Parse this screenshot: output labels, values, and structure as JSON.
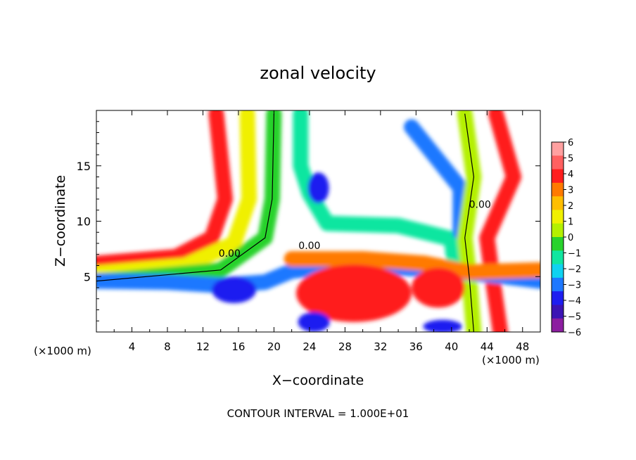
{
  "chart_data": {
    "type": "heatmap",
    "title": "zonal velocity",
    "xlabel": "X−coordinate",
    "ylabel": "Z−coordinate",
    "x_unit_left": "(×1000 m)",
    "x_unit_right": "(×1000 m)",
    "footer": "CONTOUR INTERVAL = 1.000E+01",
    "xlim": [
      0,
      50
    ],
    "ylim": [
      0,
      20
    ],
    "x_ticks": [
      4,
      8,
      12,
      16,
      20,
      24,
      28,
      32,
      36,
      40,
      44,
      48
    ],
    "x_tick_labels": [
      "4",
      "8",
      "12",
      "16",
      "20",
      "24",
      "28",
      "32",
      "36",
      "40",
      "44",
      "48"
    ],
    "y_ticks": [
      5,
      10,
      15
    ],
    "y_tick_labels": [
      "5",
      "10",
      "15"
    ],
    "contour_label_text": "0.00",
    "contour_labels": [
      {
        "x": 15.0,
        "y": 6.8
      },
      {
        "x": 24.0,
        "y": 7.5
      },
      {
        "x": 43.2,
        "y": 11.2
      }
    ],
    "colorbar": {
      "levels": [
        6,
        5,
        4,
        3,
        2,
        1,
        0,
        -1,
        -2,
        -3,
        -4,
        -5,
        -6
      ],
      "tick_labels": [
        "6",
        "5",
        "4",
        "3",
        "2",
        "1",
        "0",
        "−1",
        "−2",
        "−3",
        "−4",
        "−5",
        "−6"
      ],
      "colors": [
        "#ffa0a0",
        "#ff6060",
        "#ff1e1e",
        "#ff7a00",
        "#ffbe00",
        "#f0f000",
        "#b4f000",
        "#28d22c",
        "#10e6a0",
        "#10d2f0",
        "#1e78ff",
        "#1e1ef0",
        "#3c14b4",
        "#8c1ea0"
      ]
    },
    "velocity_regions": [
      {
        "shape": "band",
        "points": [
          [
            13.5,
            19.7
          ],
          [
            14.5,
            12
          ],
          [
            13,
            8.5
          ],
          [
            9,
            6.8
          ],
          [
            0,
            6.2
          ]
        ],
        "value": 4
      },
      {
        "shape": "band",
        "points": [
          [
            17,
            19.7
          ],
          [
            17.2,
            12
          ],
          [
            15.5,
            8
          ],
          [
            10,
            6
          ],
          [
            0,
            5.3
          ]
        ],
        "value": 1
      },
      {
        "shape": "band",
        "points": [
          [
            20,
            19.7
          ],
          [
            19.8,
            12
          ],
          [
            19,
            8.5
          ],
          [
            14,
            5.6
          ],
          [
            0,
            4.6
          ]
        ],
        "value": -1
      },
      {
        "shape": "band",
        "points": [
          [
            23,
            19.7
          ],
          [
            23,
            15
          ],
          [
            24,
            12.5
          ],
          [
            26,
            9.8
          ],
          [
            34,
            9.6
          ],
          [
            40,
            8.4
          ],
          [
            40.5,
            5
          ]
        ],
        "value": -2
      },
      {
        "shape": "band",
        "points": [
          [
            35.5,
            18.5
          ],
          [
            38,
            16
          ],
          [
            41,
            13
          ],
          [
            41,
            9
          ]
        ],
        "value": -4
      },
      {
        "shape": "band",
        "points": [
          [
            41.5,
            19.7
          ],
          [
            42.5,
            14
          ],
          [
            41.5,
            8.5
          ],
          [
            42,
            5
          ],
          [
            42.5,
            0
          ]
        ],
        "value": 0
      },
      {
        "shape": "band",
        "points": [
          [
            45,
            19.7
          ],
          [
            47,
            14
          ],
          [
            44,
            8.5
          ],
          [
            44.5,
            5.5
          ],
          [
            45.5,
            0
          ]
        ],
        "value": 4
      },
      {
        "shape": "band",
        "points": [
          [
            0,
            4.6
          ],
          [
            8,
            4.5
          ],
          [
            14,
            4.2
          ],
          [
            19,
            4.5
          ],
          [
            22,
            5.5
          ],
          [
            28,
            6
          ],
          [
            34,
            5.8
          ],
          [
            40,
            5.5
          ],
          [
            46,
            5
          ],
          [
            50,
            4.6
          ]
        ],
        "value": -4
      },
      {
        "shape": "band",
        "points": [
          [
            22,
            6.6
          ],
          [
            30,
            6.6
          ],
          [
            37,
            6.2
          ],
          [
            42,
            5.4
          ],
          [
            50,
            5.6
          ]
        ],
        "value": 3
      },
      {
        "shape": "blob",
        "center": [
          15.5,
          3.8
        ],
        "radius": [
          2.5,
          1.2
        ],
        "value": -5
      },
      {
        "shape": "blob",
        "center": [
          29,
          3.5
        ],
        "radius": [
          6.5,
          2.6
        ],
        "value": 4
      },
      {
        "shape": "blob",
        "center": [
          38.5,
          4.0
        ],
        "radius": [
          3,
          1.8
        ],
        "value": 4
      },
      {
        "shape": "blob",
        "center": [
          24.5,
          0.9
        ],
        "radius": [
          1.8,
          0.9
        ],
        "value": -5
      },
      {
        "shape": "blob",
        "center": [
          39,
          0.5
        ],
        "radius": [
          2.2,
          0.6
        ],
        "value": -5
      },
      {
        "shape": "blob",
        "center": [
          25,
          13
        ],
        "radius": [
          1.2,
          1.4
        ],
        "value": -5
      }
    ]
  }
}
